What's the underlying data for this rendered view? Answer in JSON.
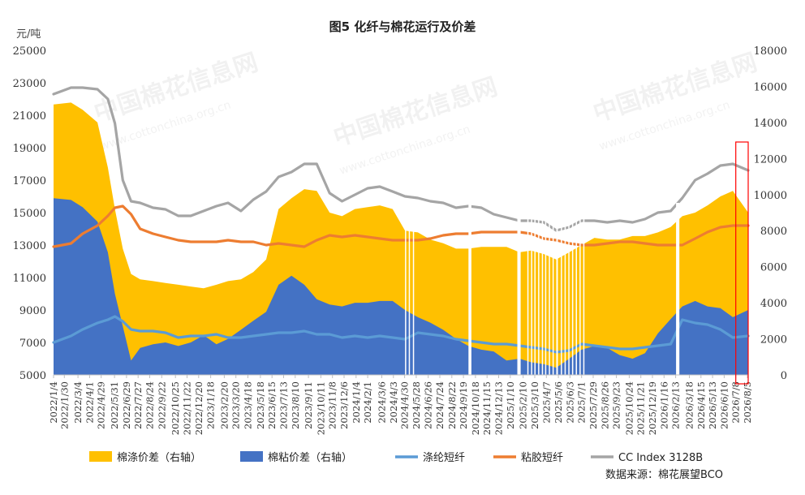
{
  "chart_data": {
    "type": "area",
    "title": "图5 化纤与棉花运行及价差",
    "left_unit": "元/吨",
    "left_axis": {
      "ylim": [
        5000,
        25000
      ],
      "ticks": [
        5000,
        7000,
        9000,
        11000,
        13000,
        15000,
        17000,
        19000,
        21000,
        23000,
        25000
      ]
    },
    "right_axis": {
      "ylim": [
        0,
        18000
      ],
      "ticks": [
        0,
        2000,
        4000,
        6000,
        8000,
        10000,
        12000,
        14000,
        16000,
        18000
      ]
    },
    "x_start": "2022-01-04",
    "x_end": "2026-08-07",
    "x_ticks": [
      "2022/1/4",
      "2022/1/30",
      "2022/3/4",
      "2022/4/1",
      "2022/4/29",
      "2022/5/31",
      "2022/6/29",
      "2022/7/27",
      "2022/8/24",
      "2022/9/22",
      "2022/10/25",
      "2022/11/22",
      "2022/12/20",
      "2023/1/18",
      "2023/2/20",
      "2023/3/20",
      "2023/4/18",
      "2023/5/18",
      "2023/6/15",
      "2023/7/13",
      "2023/8/10",
      "2023/9/11",
      "2023/10/11",
      "2023/11/8",
      "2023/12/6",
      "2024/1/4",
      "2024/2/1",
      "2024/3/6",
      "2024/4/3",
      "2024/4/30",
      "2024/5/28",
      "2024/6/26",
      "2024/7/24",
      "2024/8/22",
      "2024/9/19",
      "2024/10/18",
      "2024/11/15",
      "2024/12/13",
      "2025/1/10",
      "2025/2/10",
      "2025/3/10",
      "2025/4/7",
      "2025/5/6",
      "2025/6/3",
      "2025/7/1",
      "2025/7/29",
      "2025/8/26",
      "2025/9/23",
      "2025/10/24",
      "2025/11/21",
      "2025/12/19",
      "2026/1/16",
      "2026/2/13",
      "2026/3/18",
      "2026/4/15",
      "2026/5/13",
      "2026/6/10",
      "2026/7/8",
      "2026/8/5"
    ],
    "series": [
      {
        "name": "棉涤价差（右轴）",
        "type": "area",
        "axis": "right",
        "color": "#FFC000",
        "x": [
          "2022-01-04",
          "2022-02-15",
          "2022-03-15",
          "2022-04-20",
          "2022-05-15",
          "2022-06-01",
          "2022-06-20",
          "2022-07-10",
          "2022-08-01",
          "2022-09-01",
          "2022-10-01",
          "2022-11-01",
          "2022-12-01",
          "2023-01-01",
          "2023-02-01",
          "2023-03-01",
          "2023-04-01",
          "2023-05-01",
          "2023-06-01",
          "2023-07-01",
          "2023-08-01",
          "2023-09-01",
          "2023-10-01",
          "2023-11-01",
          "2023-12-01",
          "2024-01-01",
          "2024-02-01",
          "2024-03-01",
          "2024-04-01",
          "2024-05-01",
          "2024-06-01",
          "2024-07-01",
          "2024-08-01",
          "2024-09-01",
          "2024-10-01",
          "2024-11-01",
          "2024-12-01",
          "2025-01-01",
          "2025-02-01",
          "2025-03-01",
          "2025-04-01",
          "2025-05-01",
          "2025-06-01",
          "2025-07-01",
          "2025-08-01",
          "2025-09-01",
          "2025-10-01",
          "2025-11-01",
          "2025-12-01",
          "2026-01-01",
          "2026-02-01",
          "2026-03-01",
          "2026-04-01",
          "2026-05-01",
          "2026-06-01",
          "2026-07-01",
          "2026-08-07"
        ],
        "values": [
          15000,
          15100,
          14700,
          14000,
          11500,
          9200,
          7000,
          5600,
          5300,
          5200,
          5100,
          5000,
          4900,
          4800,
          5000,
          5200,
          5300,
          5700,
          6400,
          9200,
          9800,
          10300,
          10200,
          9000,
          8800,
          9200,
          9300,
          9400,
          9200,
          8000,
          7900,
          7500,
          7300,
          7000,
          7000,
          7100,
          7100,
          7100,
          6800,
          6900,
          6700,
          6400,
          6800,
          7200,
          7600,
          7500,
          7500,
          7700,
          7700,
          7900,
          8200,
          8800,
          9000,
          9400,
          9900,
          10200,
          9000
        ]
      },
      {
        "name": "棉粘价差（右轴）",
        "type": "area",
        "axis": "right",
        "color": "#4472C4",
        "x": [
          "2022-01-04",
          "2022-02-15",
          "2022-03-15",
          "2022-04-20",
          "2022-05-15",
          "2022-06-01",
          "2022-06-20",
          "2022-07-10",
          "2022-08-01",
          "2022-09-01",
          "2022-10-01",
          "2022-11-01",
          "2022-12-01",
          "2023-01-01",
          "2023-02-01",
          "2023-03-01",
          "2023-04-01",
          "2023-05-01",
          "2023-06-01",
          "2023-07-01",
          "2023-08-01",
          "2023-09-01",
          "2023-10-01",
          "2023-11-01",
          "2023-12-01",
          "2024-01-01",
          "2024-02-01",
          "2024-03-01",
          "2024-04-01",
          "2024-05-01",
          "2024-06-01",
          "2024-07-01",
          "2024-08-01",
          "2024-09-01",
          "2024-10-01",
          "2024-11-01",
          "2024-12-01",
          "2025-01-01",
          "2025-02-01",
          "2025-03-01",
          "2025-04-01",
          "2025-05-01",
          "2025-06-01",
          "2025-07-01",
          "2025-08-01",
          "2025-09-01",
          "2025-10-01",
          "2025-11-01",
          "2025-12-01",
          "2026-01-01",
          "2026-02-01",
          "2026-03-01",
          "2026-04-01",
          "2026-05-01",
          "2026-06-01",
          "2026-07-01",
          "2026-08-07"
        ],
        "values": [
          9800,
          9700,
          9300,
          8500,
          6800,
          4500,
          2700,
          800,
          1500,
          1700,
          1800,
          1600,
          1800,
          2200,
          1700,
          2000,
          2500,
          3000,
          3500,
          5000,
          5500,
          5000,
          4200,
          3900,
          3800,
          4000,
          4000,
          4100,
          4100,
          3600,
          3200,
          2900,
          2500,
          2000,
          1600,
          1400,
          1300,
          800,
          900,
          700,
          600,
          400,
          900,
          1400,
          1600,
          1500,
          1100,
          900,
          1200,
          2300,
          3100,
          3800,
          4100,
          3800,
          3700,
          3200,
          3600
        ]
      },
      {
        "name": "涤纶短纤",
        "type": "line",
        "axis": "left",
        "color": "#5B9BD5",
        "x": [
          "2022-01-04",
          "2022-02-15",
          "2022-03-15",
          "2022-04-20",
          "2022-05-15",
          "2022-06-01",
          "2022-06-20",
          "2022-07-10",
          "2022-08-01",
          "2022-09-01",
          "2022-10-01",
          "2022-11-01",
          "2022-12-01",
          "2023-01-01",
          "2023-02-01",
          "2023-03-01",
          "2023-04-01",
          "2023-05-01",
          "2023-06-01",
          "2023-07-01",
          "2023-08-01",
          "2023-09-01",
          "2023-10-01",
          "2023-11-01",
          "2023-12-01",
          "2024-01-01",
          "2024-02-01",
          "2024-03-01",
          "2024-04-01",
          "2024-05-01",
          "2024-06-01",
          "2024-07-01",
          "2024-08-01",
          "2024-09-01",
          "2024-10-01",
          "2024-11-01",
          "2024-12-01",
          "2025-01-01",
          "2025-02-01",
          "2025-03-01",
          "2025-04-01",
          "2025-05-01",
          "2025-06-01",
          "2025-07-01",
          "2025-08-01",
          "2025-09-01",
          "2025-10-01",
          "2025-11-01",
          "2025-12-01",
          "2026-01-01",
          "2026-02-01",
          "2026-03-01",
          "2026-04-01",
          "2026-05-01",
          "2026-06-01",
          "2026-07-01",
          "2026-08-07"
        ],
        "values": [
          7000,
          7400,
          7800,
          8200,
          8400,
          8600,
          8300,
          7800,
          7700,
          7700,
          7600,
          7300,
          7400,
          7400,
          7500,
          7300,
          7300,
          7400,
          7500,
          7600,
          7600,
          7700,
          7500,
          7500,
          7300,
          7400,
          7300,
          7400,
          7300,
          7200,
          7600,
          7500,
          7400,
          7200,
          7100,
          7000,
          6900,
          6900,
          6800,
          6700,
          6600,
          6400,
          6500,
          6900,
          6800,
          6700,
          6600,
          6600,
          6700,
          6800,
          6900,
          8400,
          8200,
          8100,
          7800,
          7300,
          7400
        ]
      },
      {
        "name": "粘胶短纤",
        "type": "line",
        "axis": "left",
        "color": "#ED7D31",
        "x": [
          "2022-01-04",
          "2022-02-15",
          "2022-03-15",
          "2022-04-20",
          "2022-05-15",
          "2022-06-01",
          "2022-06-20",
          "2022-07-10",
          "2022-08-01",
          "2022-09-01",
          "2022-10-01",
          "2022-11-01",
          "2022-12-01",
          "2023-01-01",
          "2023-02-01",
          "2023-03-01",
          "2023-04-01",
          "2023-05-01",
          "2023-06-01",
          "2023-07-01",
          "2023-08-01",
          "2023-09-01",
          "2023-10-01",
          "2023-11-01",
          "2023-12-01",
          "2024-01-01",
          "2024-02-01",
          "2024-03-01",
          "2024-04-01",
          "2024-05-01",
          "2024-06-01",
          "2024-07-01",
          "2024-08-01",
          "2024-09-01",
          "2024-10-01",
          "2024-11-01",
          "2024-12-01",
          "2025-01-01",
          "2025-02-01",
          "2025-03-01",
          "2025-04-01",
          "2025-05-01",
          "2025-06-01",
          "2025-07-01",
          "2025-08-01",
          "2025-09-01",
          "2025-10-01",
          "2025-11-01",
          "2025-12-01",
          "2026-01-01",
          "2026-02-01",
          "2026-03-01",
          "2026-04-01",
          "2026-05-01",
          "2026-06-01",
          "2026-07-01",
          "2026-08-07"
        ],
        "values": [
          12900,
          13100,
          13700,
          14200,
          14800,
          15300,
          15400,
          14900,
          14000,
          13700,
          13500,
          13300,
          13200,
          13200,
          13200,
          13300,
          13200,
          13200,
          13000,
          13100,
          13000,
          12900,
          13300,
          13600,
          13500,
          13600,
          13500,
          13400,
          13300,
          13300,
          13300,
          13400,
          13600,
          13700,
          13700,
          13800,
          13800,
          13800,
          13800,
          13700,
          13400,
          13300,
          13100,
          13000,
          13000,
          13100,
          13200,
          13200,
          13100,
          13000,
          13000,
          13000,
          13400,
          13800,
          14100,
          14200,
          14200
        ]
      },
      {
        "name": "CC Index 3128B",
        "type": "line",
        "axis": "left",
        "color": "#A5A5A5",
        "x": [
          "2022-01-04",
          "2022-02-15",
          "2022-03-15",
          "2022-04-20",
          "2022-05-15",
          "2022-06-01",
          "2022-06-20",
          "2022-07-10",
          "2022-08-01",
          "2022-09-01",
          "2022-10-01",
          "2022-11-01",
          "2022-12-01",
          "2023-01-01",
          "2023-02-01",
          "2023-03-01",
          "2023-04-01",
          "2023-05-01",
          "2023-06-01",
          "2023-07-01",
          "2023-08-01",
          "2023-09-01",
          "2023-10-01",
          "2023-11-01",
          "2023-12-01",
          "2024-01-01",
          "2024-02-01",
          "2024-03-01",
          "2024-04-01",
          "2024-05-01",
          "2024-06-01",
          "2024-07-01",
          "2024-08-01",
          "2024-09-01",
          "2024-10-01",
          "2024-11-01",
          "2024-12-01",
          "2025-01-01",
          "2025-02-01",
          "2025-03-01",
          "2025-04-01",
          "2025-05-01",
          "2025-06-01",
          "2025-07-01",
          "2025-08-01",
          "2025-09-01",
          "2025-10-01",
          "2025-11-01",
          "2025-12-01",
          "2026-01-01",
          "2026-02-01",
          "2026-03-01",
          "2026-04-01",
          "2026-05-01",
          "2026-06-01",
          "2026-07-01",
          "2026-08-07"
        ],
        "values": [
          22300,
          22700,
          22700,
          22600,
          22000,
          20500,
          17000,
          15700,
          15600,
          15300,
          15200,
          14800,
          14800,
          15100,
          15400,
          15600,
          15100,
          15800,
          16300,
          17200,
          17500,
          18000,
          18000,
          16200,
          15700,
          16100,
          16500,
          16600,
          16300,
          16000,
          15900,
          15700,
          15600,
          15300,
          15400,
          15300,
          14900,
          14700,
          14500,
          14500,
          14400,
          13900,
          14100,
          14500,
          14500,
          14400,
          14500,
          14400,
          14600,
          15000,
          15100,
          15900,
          17000,
          17400,
          17900,
          18000,
          17600
        ]
      }
    ],
    "gaps": [
      {
        "x": [
          "2024-05-01",
          "2024-05-03"
        ]
      },
      {
        "x": [
          "2024-05-10",
          "2024-05-12"
        ]
      },
      {
        "x": [
          "2024-05-20",
          "2024-05-22"
        ]
      },
      {
        "x": [
          "2024-10-01",
          "2024-10-08"
        ]
      },
      {
        "x": [
          "2025-01-27",
          "2025-02-04"
        ]
      },
      {
        "x": [
          "2025-02-20",
          "2025-02-22"
        ]
      },
      {
        "x": [
          "2025-03-01",
          "2025-03-03"
        ]
      },
      {
        "x": [
          "2025-03-09",
          "2025-03-11"
        ]
      },
      {
        "x": [
          "2025-03-18",
          "2025-03-20"
        ]
      },
      {
        "x": [
          "2025-03-27",
          "2025-03-29"
        ]
      },
      {
        "x": [
          "2025-04-04",
          "2025-04-06"
        ]
      },
      {
        "x": [
          "2025-04-13",
          "2025-04-15"
        ]
      },
      {
        "x": [
          "2025-04-22",
          "2025-04-24"
        ]
      },
      {
        "x": [
          "2025-05-01",
          "2025-05-05"
        ]
      },
      {
        "x": [
          "2025-05-12",
          "2025-05-14"
        ]
      },
      {
        "x": [
          "2025-05-21",
          "2025-05-23"
        ]
      },
      {
        "x": [
          "2025-05-30",
          "2025-06-01"
        ]
      },
      {
        "x": [
          "2025-06-08",
          "2025-06-10"
        ]
      },
      {
        "x": [
          "2025-06-17",
          "2025-06-19"
        ]
      },
      {
        "x": [
          "2025-06-26",
          "2025-06-28"
        ]
      },
      {
        "x": [
          "2025-07-05",
          "2025-07-07"
        ]
      },
      {
        "x": [
          "2026-02-14",
          "2026-02-22"
        ]
      }
    ],
    "highlight": {
      "x": [
        "2026-07-08",
        "2026-08-07"
      ],
      "color": "#FF0000"
    },
    "legend": {
      "position": "bottom"
    },
    "source": "数据来源：棉花展望BCO"
  },
  "watermarks": {
    "brand": "中国棉花信息网",
    "url": "www.cottonchina.org.cn"
  }
}
